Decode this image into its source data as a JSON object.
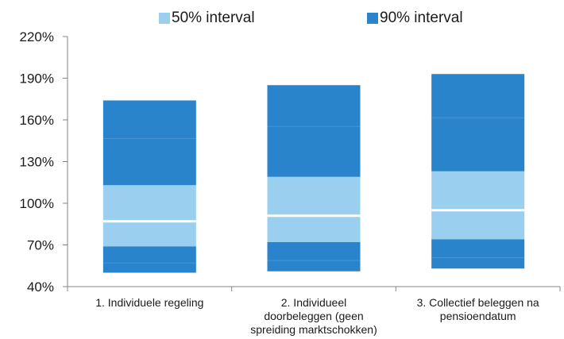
{
  "chart_data": {
    "type": "bar",
    "subtype": "stacked-range",
    "legend_position": "top",
    "grid": false,
    "ylim": [
      40,
      220
    ],
    "yticks": [
      40,
      70,
      100,
      130,
      160,
      190,
      220
    ],
    "ytick_labels": [
      "40%",
      "70%",
      "100%",
      "130%",
      "160%",
      "190%",
      "220%"
    ],
    "categories": [
      [
        "1. Individuele regeling"
      ],
      [
        "2. Individueel",
        "doorbeleggen (geen",
        "spreiding marktschokken)"
      ],
      [
        "3. Collectief beleggen na",
        "pensioendatum"
      ]
    ],
    "series": [
      {
        "name": "50% interval",
        "color": "#9bcfef"
      },
      {
        "name": "90% interval",
        "color": "#2a84cc"
      }
    ],
    "data": [
      {
        "p5": 50,
        "p25": 69,
        "median": 87,
        "p75": 113,
        "p95": 174
      },
      {
        "p5": 51,
        "p25": 72,
        "median": 91,
        "p75": 119,
        "p95": 185
      },
      {
        "p5": 53,
        "p25": 74,
        "median": 95,
        "p75": 123,
        "p95": 193
      }
    ]
  }
}
